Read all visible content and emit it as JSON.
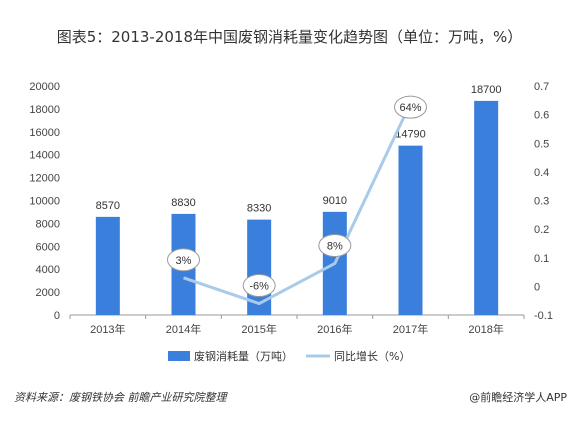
{
  "chart_data": {
    "type": "bar",
    "title": "图表5：2013-2018年中国废钢消耗量变化趋势图（单位：万吨，%）",
    "categories": [
      "2013年",
      "2014年",
      "2015年",
      "2016年",
      "2017年",
      "2018年"
    ],
    "series": [
      {
        "name": "废钢消耗量（万吨）",
        "type": "bar",
        "axis": "left",
        "color": "#3a7fdc",
        "values": [
          8570,
          8830,
          8330,
          9010,
          14790,
          18700
        ],
        "labels": [
          "8570",
          "8830",
          "8330",
          "9010",
          "14790",
          "18700"
        ]
      },
      {
        "name": "同比增长（%）",
        "type": "line",
        "axis": "right",
        "color": "#a9cbea",
        "values": [
          null,
          0.03,
          -0.06,
          0.08,
          0.64,
          null
        ],
        "labels": [
          "",
          "3%",
          "-6%",
          "8%",
          "64%",
          ""
        ]
      }
    ],
    "y_left": {
      "ylim": [
        0,
        20000
      ],
      "ticks": [
        "0",
        "2000",
        "4000",
        "6000",
        "8000",
        "10000",
        "12000",
        "14000",
        "16000",
        "18000",
        "20000"
      ]
    },
    "y_right": {
      "ylim": [
        -0.1,
        0.7
      ],
      "ticks": [
        "-0.1",
        "0",
        "0.1",
        "0.2",
        "0.3",
        "0.4",
        "0.5",
        "0.6",
        "0.7"
      ]
    },
    "grid": false,
    "legend": "bottom-center"
  },
  "footer": {
    "source": "资料来源：废钢铁协会 前瞻产业研究院整理",
    "brand": "@前瞻经济学人APP"
  }
}
